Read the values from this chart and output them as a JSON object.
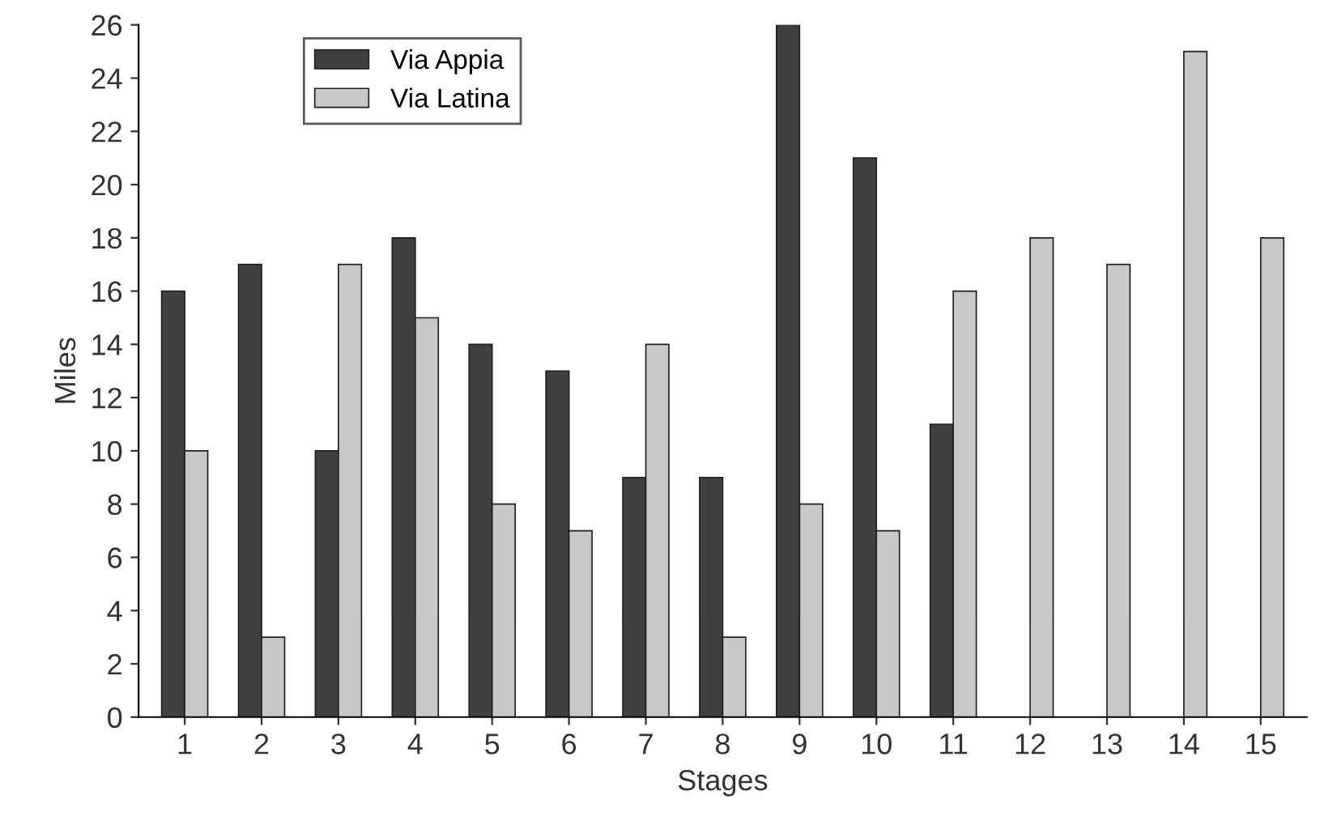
{
  "chart_data": {
    "type": "bar",
    "xlabel": "Stages",
    "ylabel": "Miles",
    "categories": [
      "1",
      "2",
      "3",
      "4",
      "5",
      "6",
      "7",
      "8",
      "9",
      "10",
      "11",
      "12",
      "13",
      "14",
      "15"
    ],
    "series": [
      {
        "name": "Via Appia",
        "color": "#404040",
        "values": [
          16,
          17,
          10,
          18,
          14,
          13,
          9,
          9,
          26,
          21,
          11,
          null,
          null,
          null,
          null
        ]
      },
      {
        "name": "Via Latina",
        "color": "#c8c8c8",
        "values": [
          10,
          3,
          17,
          15,
          8,
          7,
          14,
          3,
          8,
          7,
          16,
          18,
          17,
          25,
          18
        ]
      }
    ],
    "ylim": [
      0,
      26
    ],
    "yticks": [
      0,
      2,
      4,
      6,
      8,
      10,
      12,
      14,
      16,
      18,
      20,
      22,
      24,
      26
    ],
    "grid": false,
    "legend": "top left"
  }
}
